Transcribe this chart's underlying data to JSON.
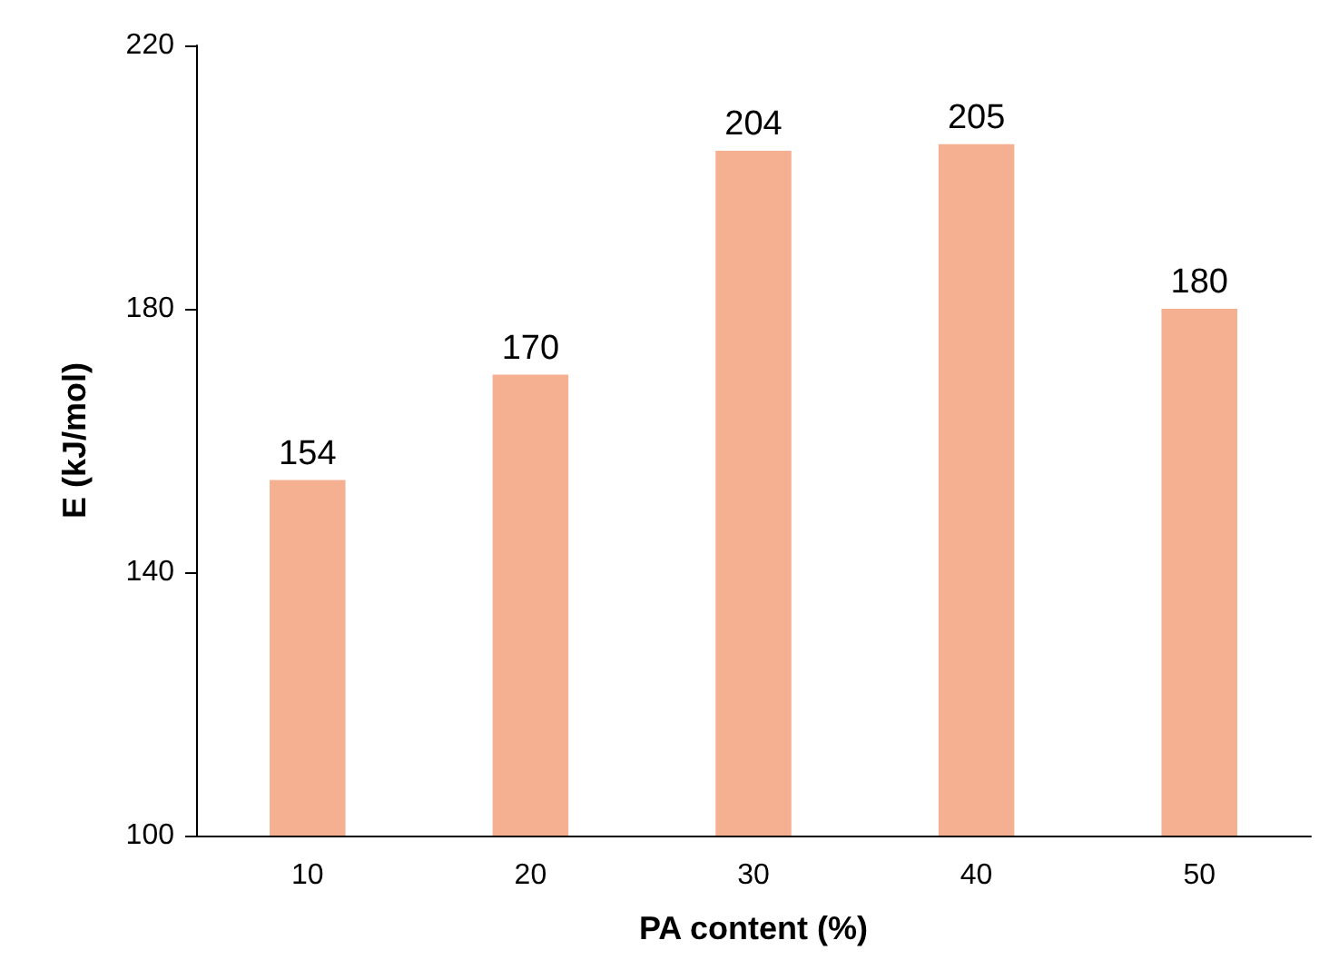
{
  "chart_data": {
    "type": "bar",
    "xlabel": "PA content (%)",
    "ylabel": "E (kJ/mol)",
    "categories": [
      "10",
      "20",
      "30",
      "40",
      "50"
    ],
    "values": [
      154,
      170,
      204,
      205,
      180
    ],
    "color": "#f5b092",
    "ylim": [
      100,
      220
    ],
    "yticks": [
      100,
      140,
      180,
      220
    ],
    "data_labels": true,
    "grid": false
  }
}
